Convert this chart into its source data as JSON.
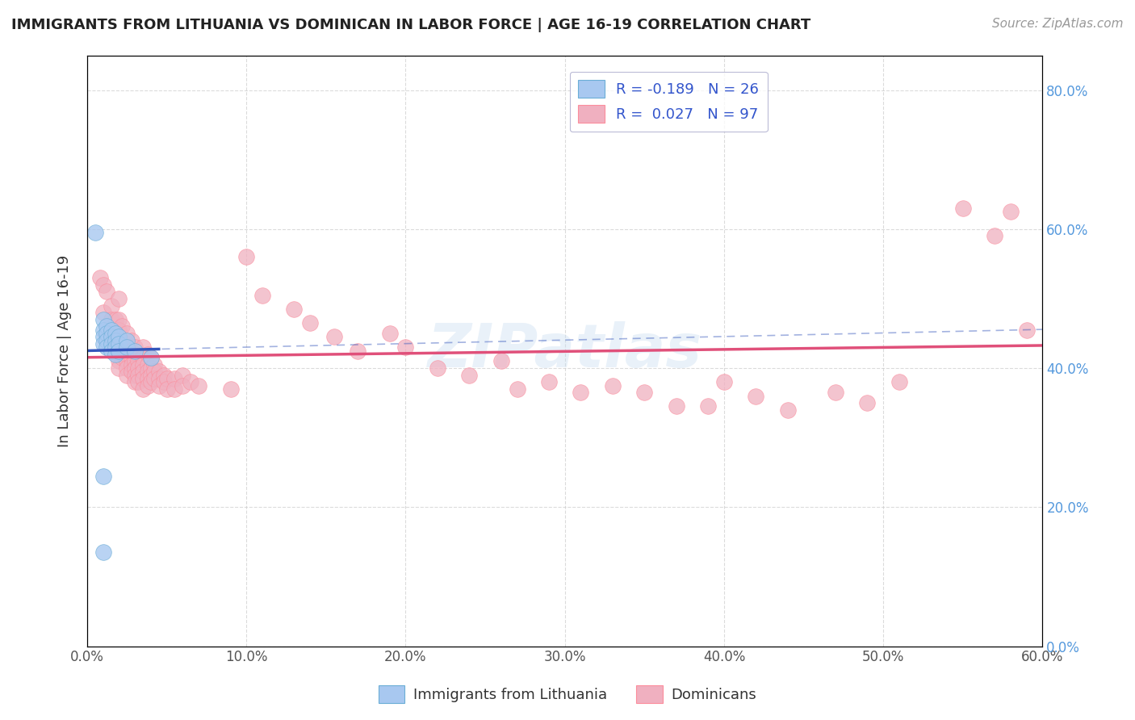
{
  "title": "IMMIGRANTS FROM LITHUANIA VS DOMINICAN IN LABOR FORCE | AGE 16-19 CORRELATION CHART",
  "source_text": "Source: ZipAtlas.com",
  "ylabel": "In Labor Force | Age 16-19",
  "xmin": 0.0,
  "xmax": 0.6,
  "ymin": 0.0,
  "ymax": 0.85,
  "watermark": "ZIPatlas",
  "legend_label_blue": "Immigrants from Lithuania",
  "legend_label_pink": "Dominicans",
  "blue_color": "#6baed6",
  "pink_color": "#fc8d9c",
  "blue_fill": "#a8c8f0",
  "pink_fill": "#f0b0c0",
  "blue_line_color": "#3355bb",
  "pink_line_color": "#e0507a",
  "grid_color": "#cccccc",
  "bg_color": "#ffffff",
  "blue_scatter": [
    [
      0.005,
      0.595
    ],
    [
      0.01,
      0.47
    ],
    [
      0.01,
      0.455
    ],
    [
      0.01,
      0.445
    ],
    [
      0.01,
      0.435
    ],
    [
      0.012,
      0.46
    ],
    [
      0.012,
      0.45
    ],
    [
      0.012,
      0.44
    ],
    [
      0.012,
      0.43
    ],
    [
      0.015,
      0.455
    ],
    [
      0.015,
      0.445
    ],
    [
      0.015,
      0.435
    ],
    [
      0.015,
      0.425
    ],
    [
      0.018,
      0.45
    ],
    [
      0.018,
      0.44
    ],
    [
      0.018,
      0.43
    ],
    [
      0.018,
      0.42
    ],
    [
      0.02,
      0.445
    ],
    [
      0.02,
      0.435
    ],
    [
      0.02,
      0.425
    ],
    [
      0.025,
      0.44
    ],
    [
      0.025,
      0.43
    ],
    [
      0.03,
      0.425
    ],
    [
      0.01,
      0.245
    ],
    [
      0.01,
      0.135
    ],
    [
      0.04,
      0.415
    ]
  ],
  "pink_scatter": [
    [
      0.008,
      0.53
    ],
    [
      0.01,
      0.52
    ],
    [
      0.01,
      0.48
    ],
    [
      0.012,
      0.51
    ],
    [
      0.015,
      0.49
    ],
    [
      0.015,
      0.47
    ],
    [
      0.015,
      0.45
    ],
    [
      0.018,
      0.47
    ],
    [
      0.018,
      0.45
    ],
    [
      0.018,
      0.44
    ],
    [
      0.02,
      0.5
    ],
    [
      0.02,
      0.47
    ],
    [
      0.02,
      0.455
    ],
    [
      0.02,
      0.44
    ],
    [
      0.02,
      0.43
    ],
    [
      0.02,
      0.42
    ],
    [
      0.02,
      0.41
    ],
    [
      0.02,
      0.4
    ],
    [
      0.022,
      0.46
    ],
    [
      0.022,
      0.44
    ],
    [
      0.022,
      0.425
    ],
    [
      0.022,
      0.415
    ],
    [
      0.025,
      0.45
    ],
    [
      0.025,
      0.435
    ],
    [
      0.025,
      0.42
    ],
    [
      0.025,
      0.41
    ],
    [
      0.025,
      0.4
    ],
    [
      0.025,
      0.39
    ],
    [
      0.028,
      0.44
    ],
    [
      0.028,
      0.425
    ],
    [
      0.028,
      0.415
    ],
    [
      0.028,
      0.405
    ],
    [
      0.028,
      0.395
    ],
    [
      0.03,
      0.43
    ],
    [
      0.03,
      0.42
    ],
    [
      0.03,
      0.41
    ],
    [
      0.03,
      0.4
    ],
    [
      0.03,
      0.39
    ],
    [
      0.03,
      0.38
    ],
    [
      0.032,
      0.42
    ],
    [
      0.032,
      0.41
    ],
    [
      0.032,
      0.4
    ],
    [
      0.032,
      0.39
    ],
    [
      0.032,
      0.38
    ],
    [
      0.035,
      0.43
    ],
    [
      0.035,
      0.415
    ],
    [
      0.035,
      0.405
    ],
    [
      0.035,
      0.395
    ],
    [
      0.035,
      0.385
    ],
    [
      0.035,
      0.37
    ],
    [
      0.038,
      0.42
    ],
    [
      0.038,
      0.405
    ],
    [
      0.038,
      0.395
    ],
    [
      0.038,
      0.385
    ],
    [
      0.038,
      0.375
    ],
    [
      0.04,
      0.415
    ],
    [
      0.04,
      0.4
    ],
    [
      0.04,
      0.39
    ],
    [
      0.04,
      0.38
    ],
    [
      0.042,
      0.405
    ],
    [
      0.042,
      0.395
    ],
    [
      0.042,
      0.385
    ],
    [
      0.045,
      0.395
    ],
    [
      0.045,
      0.385
    ],
    [
      0.045,
      0.375
    ],
    [
      0.048,
      0.39
    ],
    [
      0.048,
      0.38
    ],
    [
      0.05,
      0.385
    ],
    [
      0.05,
      0.37
    ],
    [
      0.055,
      0.385
    ],
    [
      0.055,
      0.37
    ],
    [
      0.06,
      0.39
    ],
    [
      0.06,
      0.375
    ],
    [
      0.065,
      0.38
    ],
    [
      0.07,
      0.375
    ],
    [
      0.09,
      0.37
    ],
    [
      0.1,
      0.56
    ],
    [
      0.11,
      0.505
    ],
    [
      0.13,
      0.485
    ],
    [
      0.14,
      0.465
    ],
    [
      0.155,
      0.445
    ],
    [
      0.17,
      0.425
    ],
    [
      0.19,
      0.45
    ],
    [
      0.2,
      0.43
    ],
    [
      0.22,
      0.4
    ],
    [
      0.24,
      0.39
    ],
    [
      0.26,
      0.41
    ],
    [
      0.27,
      0.37
    ],
    [
      0.29,
      0.38
    ],
    [
      0.31,
      0.365
    ],
    [
      0.33,
      0.375
    ],
    [
      0.35,
      0.365
    ],
    [
      0.37,
      0.345
    ],
    [
      0.39,
      0.345
    ],
    [
      0.4,
      0.38
    ],
    [
      0.42,
      0.36
    ],
    [
      0.44,
      0.34
    ],
    [
      0.47,
      0.365
    ],
    [
      0.49,
      0.35
    ],
    [
      0.51,
      0.38
    ],
    [
      0.55,
      0.63
    ],
    [
      0.57,
      0.59
    ],
    [
      0.58,
      0.625
    ],
    [
      0.59,
      0.455
    ]
  ]
}
